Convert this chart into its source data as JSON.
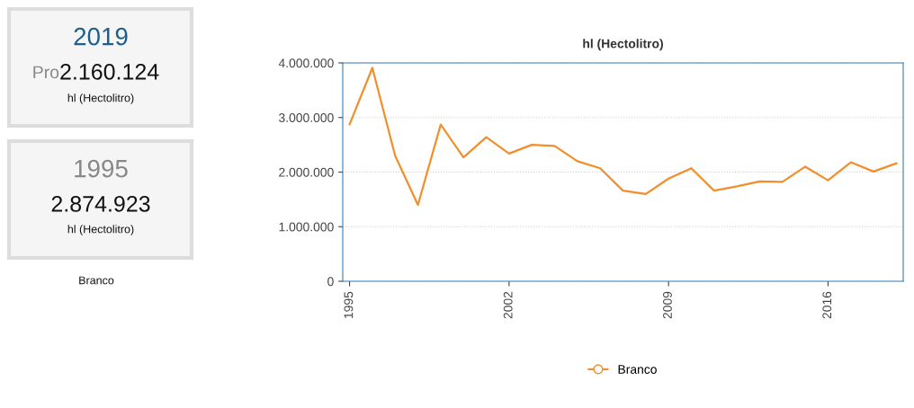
{
  "chart_data": [
    {
      "type": "other",
      "annotations": [
        "2019",
        "Pro",
        "2.160.124",
        "hl (Hectolitro)",
        "1995",
        "2.874.923",
        "hl (Hectolitro)",
        "Branco"
      ]
    },
    {
      "type": "line",
      "title": "hl (Hectolitro)",
      "x": [
        1995,
        1996,
        1997,
        1998,
        1999,
        2000,
        2001,
        2002,
        2003,
        2004,
        2005,
        2006,
        2007,
        2008,
        2009,
        2010,
        2011,
        2012,
        2013,
        2014,
        2015,
        2016,
        2017,
        2018,
        2019
      ],
      "series": [
        {
          "name": "Branco",
          "color": "#f28e2b",
          "values": [
            2874923,
            3910000,
            2300000,
            1400000,
            2870000,
            2270000,
            2640000,
            2340000,
            2500000,
            2480000,
            2200000,
            2070000,
            1660000,
            1600000,
            1880000,
            2070000,
            1660000,
            1740000,
            1830000,
            1820000,
            2100000,
            1850000,
            2180000,
            2010000,
            2160124
          ]
        }
      ],
      "xlim": [
        1994.7,
        2019.3
      ],
      "xticks": [
        1995,
        2002,
        2009,
        2016
      ],
      "ylim": [
        0,
        4000000
      ],
      "yticks": [
        0,
        {
          "value": 1000000,
          "label": "1.000.000"
        },
        {
          "value": 2000000,
          "label": "2.000.000"
        },
        {
          "value": 3000000,
          "label": "3.000.000"
        },
        {
          "value": 4000000,
          "label": "4.000.000"
        }
      ],
      "grid": "y",
      "legend": "bottom",
      "marker": "none",
      "line_style": "solid"
    }
  ]
}
